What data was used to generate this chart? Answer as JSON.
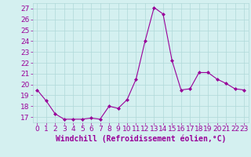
{
  "x": [
    0,
    1,
    2,
    3,
    4,
    5,
    6,
    7,
    8,
    9,
    10,
    11,
    12,
    13,
    14,
    15,
    16,
    17,
    18,
    19,
    20,
    21,
    22,
    23
  ],
  "y": [
    19.5,
    18.5,
    17.3,
    16.8,
    16.8,
    16.8,
    16.9,
    16.8,
    18.0,
    17.8,
    18.6,
    20.5,
    24.0,
    27.1,
    26.5,
    22.2,
    19.5,
    19.6,
    21.1,
    21.1,
    20.5,
    20.1,
    19.6,
    19.5
  ],
  "line_color": "#990099",
  "marker": "D",
  "marker_size": 2,
  "bg_color": "#d4f0f0",
  "grid_color": "#b0d8d8",
  "xlabel": "Windchill (Refroidissement éolien,°C)",
  "xlabel_color": "#990099",
  "ylim": [
    16.5,
    27.5
  ],
  "yticks": [
    17,
    18,
    19,
    20,
    21,
    22,
    23,
    24,
    25,
    26,
    27
  ],
  "xticks": [
    0,
    1,
    2,
    3,
    4,
    5,
    6,
    7,
    8,
    9,
    10,
    11,
    12,
    13,
    14,
    15,
    16,
    17,
    18,
    19,
    20,
    21,
    22,
    23
  ],
  "tick_color": "#990099",
  "tick_fontsize": 6.5,
  "xlabel_fontsize": 7.0,
  "linewidth": 0.8
}
